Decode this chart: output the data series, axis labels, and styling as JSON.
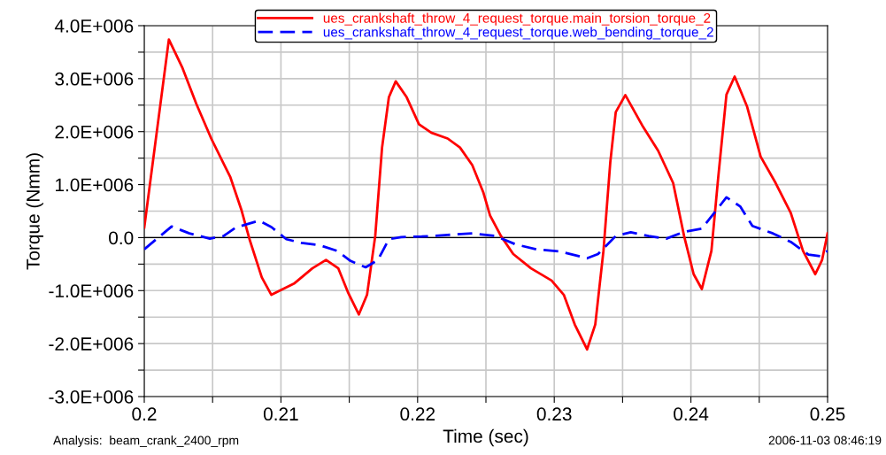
{
  "chart_data": {
    "type": "line",
    "xlabel": "Time (sec)",
    "ylabel": "Torque (Nmm)",
    "xlim": [
      0.2,
      0.25
    ],
    "xticks": [
      0.2,
      {
        "value": 0.205,
        "label": null
      },
      0.21,
      {
        "value": 0.215,
        "label": null
      },
      0.22,
      {
        "value": 0.225,
        "label": null
      },
      0.23,
      {
        "value": 0.235,
        "label": null
      },
      0.24,
      {
        "value": 0.245,
        "label": null
      },
      0.25
    ],
    "ylim": [
      -3000000,
      4000000
    ],
    "yticks": [
      {
        "value": -3000000,
        "label": "-3.0E+006"
      },
      {
        "value": -2500000,
        "label": null
      },
      {
        "value": -2000000,
        "label": "-2.0E+006"
      },
      {
        "value": -1500000,
        "label": null
      },
      {
        "value": -1000000,
        "label": "-1.0E+006"
      },
      {
        "value": -500000,
        "label": null
      },
      {
        "value": 0,
        "label": "0.0"
      },
      {
        "value": 500000,
        "label": null
      },
      {
        "value": 1000000,
        "label": "1.0E+006"
      },
      {
        "value": 1500000,
        "label": null
      },
      {
        "value": 2000000,
        "label": "2.0E+006"
      },
      {
        "value": 2500000,
        "label": null
      },
      {
        "value": 3000000,
        "label": "3.0E+006"
      },
      {
        "value": 3500000,
        "label": null
      },
      {
        "value": 4000000,
        "label": "4.0E+006"
      }
    ],
    "grid": true,
    "legend": "top",
    "ref_lines": [
      {
        "axis": "y",
        "value": 0,
        "color": "#000000",
        "line_style": "solid"
      }
    ],
    "annotations": [
      "Analysis:  beam_crank_2400_rpm",
      "2006-11-03 08:46:19"
    ],
    "series": [
      {
        "name": "ues_crankshaft_throw_4_request_torque.main_torsion_torque_2",
        "color": "#ff0000",
        "line_style": "solid",
        "x": [
          0.2,
          0.2018,
          0.2028,
          0.2038,
          0.2049,
          0.2063,
          0.2071,
          0.2077,
          0.2086,
          0.2093,
          0.211,
          0.2123,
          0.2133,
          0.2142,
          0.2149,
          0.2157,
          0.2163,
          0.2169,
          0.2174,
          0.2179,
          0.2184,
          0.2192,
          0.2201,
          0.221,
          0.2222,
          0.2231,
          0.224,
          0.2248,
          0.2253,
          0.2261,
          0.227,
          0.2283,
          0.2298,
          0.2307,
          0.2315,
          0.2324,
          0.233,
          0.2336,
          0.2341,
          0.2345,
          0.2352,
          0.2365,
          0.2376,
          0.2387,
          0.2395,
          0.2402,
          0.2408,
          0.2415,
          0.242,
          0.2426,
          0.2432,
          0.2441,
          0.2451,
          0.2462,
          0.2473,
          0.2482,
          0.2491,
          0.2496,
          0.25
        ],
        "values": [
          190000,
          3740000,
          3200000,
          2530000,
          1870000,
          1140000,
          530000,
          -30000,
          -750000,
          -1080000,
          -860000,
          -580000,
          -420000,
          -580000,
          -1030000,
          -1450000,
          -1080000,
          30000,
          1700000,
          2650000,
          2950000,
          2650000,
          2140000,
          1980000,
          1870000,
          1700000,
          1370000,
          860000,
          420000,
          30000,
          -310000,
          -580000,
          -810000,
          -1080000,
          -1640000,
          -2110000,
          -1640000,
          -250000,
          1420000,
          2370000,
          2690000,
          2090000,
          1640000,
          1030000,
          30000,
          -690000,
          -970000,
          -250000,
          1140000,
          2700000,
          3040000,
          2480000,
          1530000,
          1030000,
          470000,
          -250000,
          -690000,
          -420000,
          80000
        ]
      },
      {
        "name": "ues_crankshaft_throw_4_request_torque.web_bending_torque_2",
        "color": "#0000ff",
        "line_style": "dashed",
        "x": [
          0.2,
          0.202,
          0.2033,
          0.2048,
          0.2058,
          0.2067,
          0.2084,
          0.2093,
          0.2104,
          0.2115,
          0.2128,
          0.2141,
          0.2151,
          0.2162,
          0.2171,
          0.2179,
          0.2188,
          0.2203,
          0.2222,
          0.224,
          0.2257,
          0.2272,
          0.2287,
          0.2304,
          0.2324,
          0.2332,
          0.2345,
          0.2356,
          0.2369,
          0.2382,
          0.2395,
          0.2408,
          0.2419,
          0.2426,
          0.2436,
          0.2445,
          0.246,
          0.2473,
          0.2486,
          0.2495,
          0.25
        ],
        "values": [
          -220000,
          210000,
          80000,
          -20000,
          30000,
          190000,
          320000,
          200000,
          -30000,
          -100000,
          -140000,
          -250000,
          -440000,
          -560000,
          -420000,
          -30000,
          10000,
          20000,
          50000,
          80000,
          30000,
          -130000,
          -220000,
          -260000,
          -390000,
          -310000,
          30000,
          100000,
          30000,
          -20000,
          110000,
          170000,
          530000,
          760000,
          590000,
          220000,
          80000,
          -80000,
          -320000,
          -350000,
          -250000
        ]
      }
    ]
  }
}
